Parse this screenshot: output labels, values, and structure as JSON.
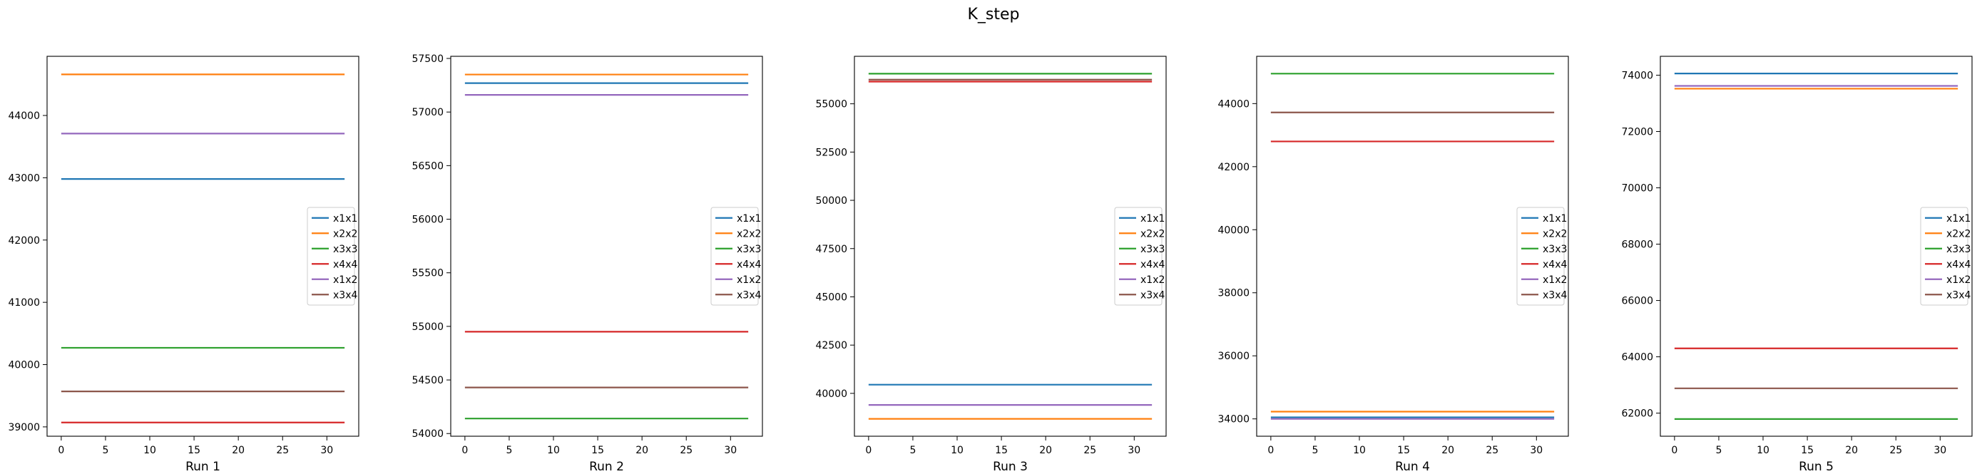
{
  "figure": {
    "title": "K_step"
  },
  "colors": {
    "x1x1": "#1f77b4",
    "x2x2": "#ff7f0e",
    "x3x3": "#2ca02c",
    "x4x4": "#d62728",
    "x1x2": "#9467bd",
    "x3x4": "#8c564b"
  },
  "chart_data": [
    {
      "type": "line",
      "title": "",
      "xlabel": "Run 1",
      "ylabel": "",
      "x": [
        0,
        32
      ],
      "xlim": [
        -1.6,
        33.6
      ],
      "ylim": [
        38850,
        44950
      ],
      "xticks": [
        0,
        5,
        10,
        15,
        20,
        25,
        30
      ],
      "yticks": [
        39000,
        40000,
        41000,
        42000,
        43000,
        44000
      ],
      "grid": false,
      "legend": "center-right",
      "series": [
        {
          "name": "x1x1",
          "values": [
            42980,
            42980
          ]
        },
        {
          "name": "x2x2",
          "values": [
            44660,
            44660
          ]
        },
        {
          "name": "x3x3",
          "values": [
            40270,
            40270
          ]
        },
        {
          "name": "x4x4",
          "values": [
            39070,
            39070
          ]
        },
        {
          "name": "x1x2",
          "values": [
            43710,
            43710
          ]
        },
        {
          "name": "x3x4",
          "values": [
            39570,
            39570
          ]
        }
      ]
    },
    {
      "type": "line",
      "title": "",
      "xlabel": "Run 2",
      "ylabel": "",
      "x": [
        0,
        32
      ],
      "xlim": [
        -1.6,
        33.6
      ],
      "ylim": [
        53975,
        57520
      ],
      "xticks": [
        0,
        5,
        10,
        15,
        20,
        25,
        30
      ],
      "yticks": [
        54000,
        54500,
        55000,
        55500,
        56000,
        56500,
        57000,
        57500
      ],
      "grid": false,
      "legend": "center-right",
      "series": [
        {
          "name": "x1x1",
          "values": [
            57270,
            57270
          ]
        },
        {
          "name": "x2x2",
          "values": [
            57350,
            57350
          ]
        },
        {
          "name": "x3x3",
          "values": [
            54140,
            54140
          ]
        },
        {
          "name": "x4x4",
          "values": [
            54950,
            54950
          ]
        },
        {
          "name": "x1x2",
          "values": [
            57160,
            57160
          ]
        },
        {
          "name": "x3x4",
          "values": [
            54430,
            54430
          ]
        }
      ]
    },
    {
      "type": "line",
      "title": "",
      "xlabel": "Run 3",
      "ylabel": "",
      "x": [
        0,
        32
      ],
      "xlim": [
        -1.6,
        33.6
      ],
      "ylim": [
        37780,
        57460
      ],
      "xticks": [
        0,
        5,
        10,
        15,
        20,
        25,
        30
      ],
      "yticks": [
        40000,
        42500,
        45000,
        47500,
        50000,
        52500,
        55000
      ],
      "grid": false,
      "legend": "center-right",
      "series": [
        {
          "name": "x1x1",
          "values": [
            40450,
            40450
          ]
        },
        {
          "name": "x2x2",
          "values": [
            38680,
            38680
          ]
        },
        {
          "name": "x3x3",
          "values": [
            56560,
            56560
          ]
        },
        {
          "name": "x4x4",
          "values": [
            56150,
            56150
          ]
        },
        {
          "name": "x1x2",
          "values": [
            39400,
            39400
          ]
        },
        {
          "name": "x3x4",
          "values": [
            56250,
            56250
          ]
        }
      ]
    },
    {
      "type": "line",
      "title": "",
      "xlabel": "Run 4",
      "ylabel": "",
      "x": [
        0,
        32
      ],
      "xlim": [
        -1.6,
        33.6
      ],
      "ylim": [
        33450,
        45500
      ],
      "xticks": [
        0,
        5,
        10,
        15,
        20,
        25,
        30
      ],
      "yticks": [
        34000,
        36000,
        38000,
        40000,
        42000,
        44000
      ],
      "grid": false,
      "legend": "center-right",
      "series": [
        {
          "name": "x1x1",
          "values": [
            34050,
            34050
          ]
        },
        {
          "name": "x2x2",
          "values": [
            34230,
            34230
          ]
        },
        {
          "name": "x3x3",
          "values": [
            44950,
            44950
          ]
        },
        {
          "name": "x4x4",
          "values": [
            42800,
            42800
          ]
        },
        {
          "name": "x1x2",
          "values": [
            34000,
            34000
          ]
        },
        {
          "name": "x3x4",
          "values": [
            43720,
            43720
          ]
        }
      ]
    },
    {
      "type": "line",
      "title": "",
      "xlabel": "Run 5",
      "ylabel": "",
      "x": [
        0,
        32
      ],
      "xlim": [
        -1.6,
        33.6
      ],
      "ylim": [
        61180,
        74670
      ],
      "xticks": [
        0,
        5,
        10,
        15,
        20,
        25,
        30
      ],
      "yticks": [
        62000,
        64000,
        66000,
        68000,
        70000,
        72000,
        74000
      ],
      "grid": false,
      "legend": "center-right",
      "series": [
        {
          "name": "x1x1",
          "values": [
            74060,
            74060
          ]
        },
        {
          "name": "x2x2",
          "values": [
            73520,
            73520
          ]
        },
        {
          "name": "x3x3",
          "values": [
            61790,
            61790
          ]
        },
        {
          "name": "x4x4",
          "values": [
            64300,
            64300
          ]
        },
        {
          "name": "x1x2",
          "values": [
            73620,
            73620
          ]
        },
        {
          "name": "x3x4",
          "values": [
            62880,
            62880
          ]
        }
      ]
    }
  ]
}
